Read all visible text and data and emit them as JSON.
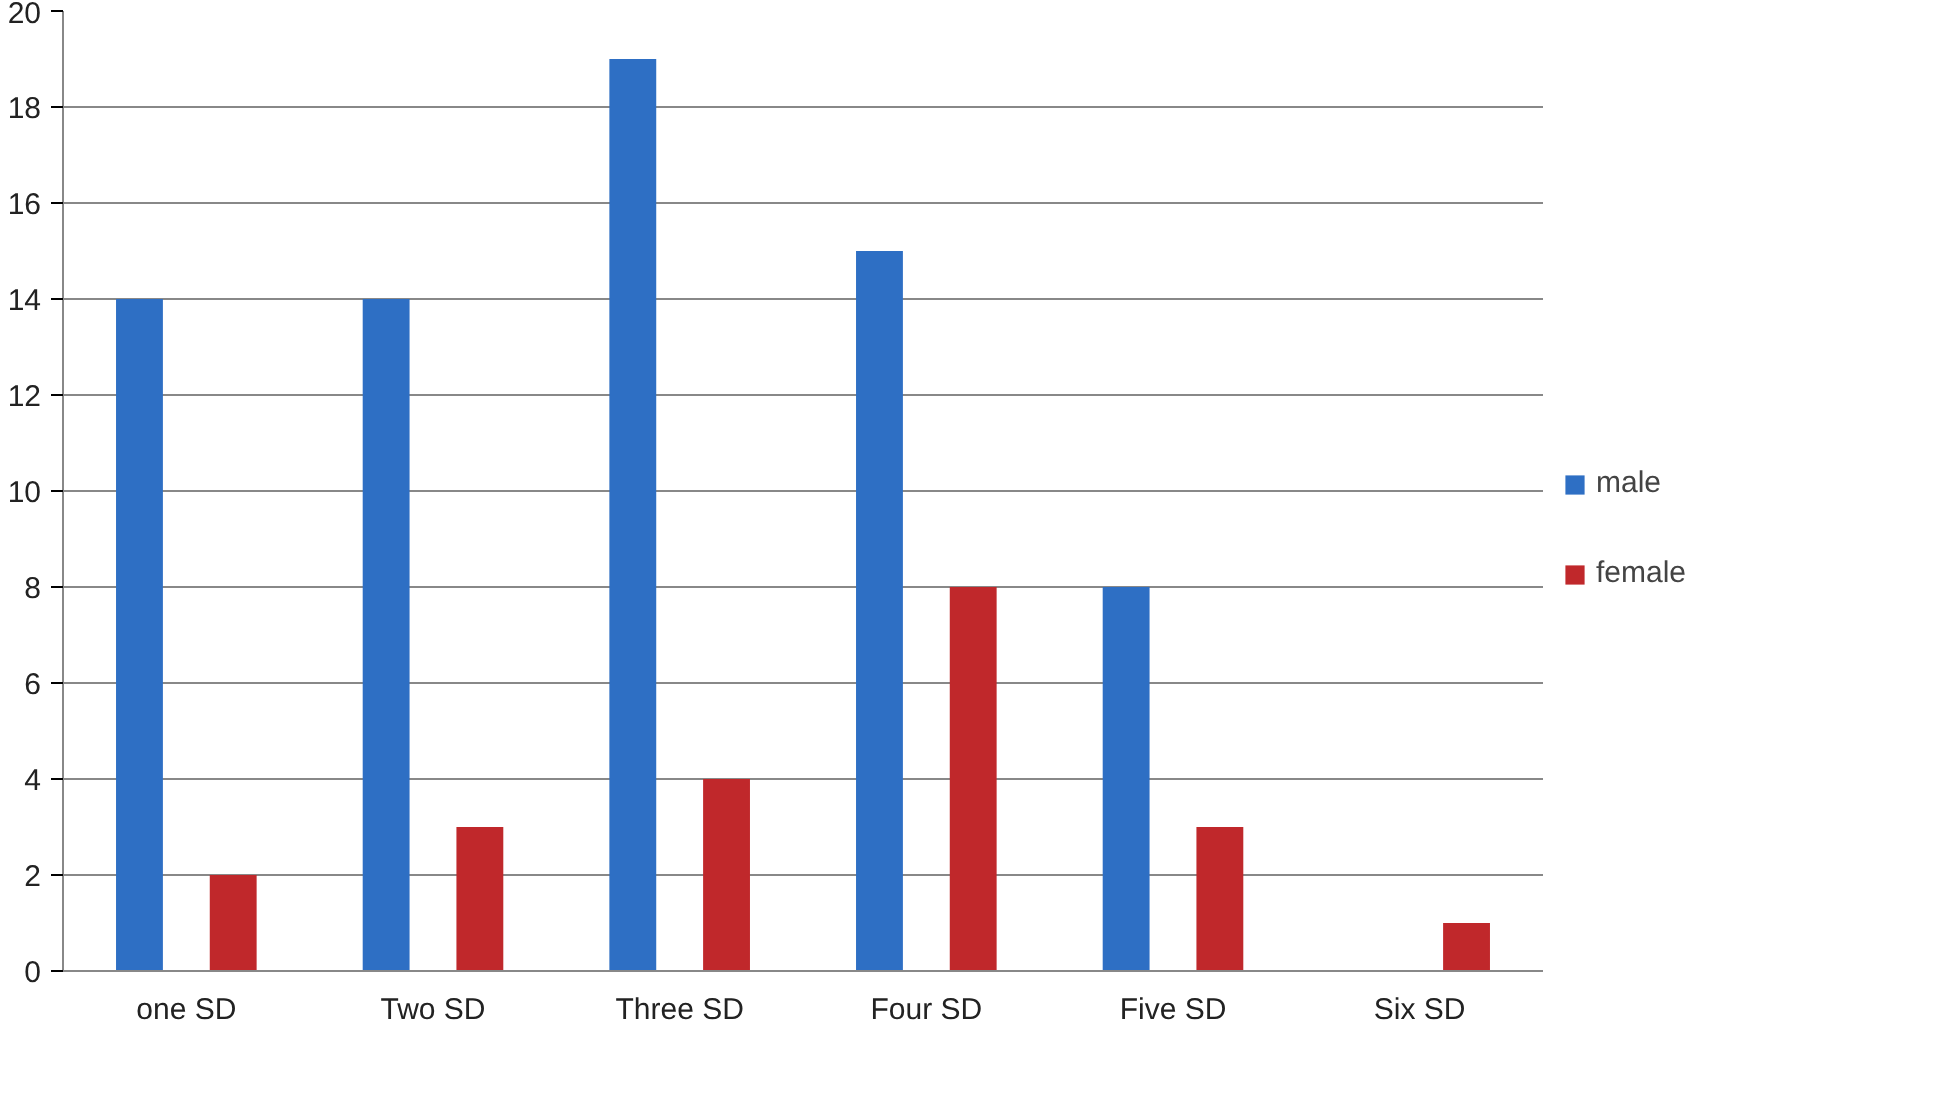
{
  "chart_data": {
    "type": "bar",
    "categories": [
      "one SD",
      "Two SD",
      "Three SD",
      "Four SD",
      "Five SD",
      "Six SD"
    ],
    "series": [
      {
        "name": "male",
        "color": "#2e6fc4",
        "values": [
          14,
          14,
          19,
          15,
          8,
          0
        ]
      },
      {
        "name": "female",
        "color": "#c0282b",
        "values": [
          2,
          3,
          4,
          8,
          3,
          1
        ]
      }
    ],
    "ylim": [
      0,
      20
    ],
    "yticks": [
      0,
      2,
      4,
      6,
      8,
      10,
      12,
      14,
      16,
      18,
      20
    ],
    "grid": "y",
    "legend": "right"
  }
}
